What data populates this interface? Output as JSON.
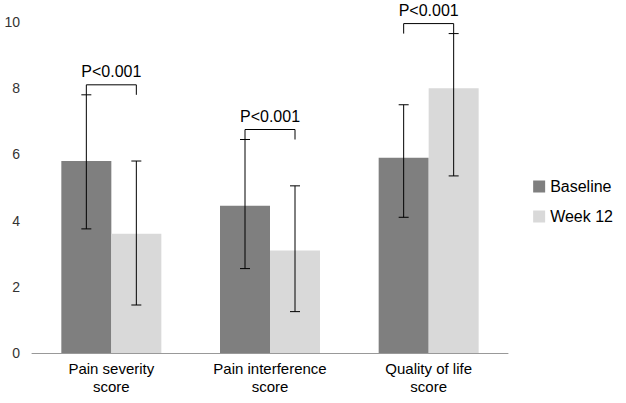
{
  "chart_data": {
    "type": "bar",
    "categories": [
      "Pain severity\nscore",
      "Pain interference\nscore",
      "Quality of life\nscore"
    ],
    "series": [
      {
        "name": "Baseline",
        "color": "#7f7f7f",
        "values": [
          5.8,
          4.45,
          5.9
        ],
        "error_minus": [
          2.05,
          1.9,
          1.8
        ],
        "error_plus": [
          2.0,
          2.0,
          1.6
        ]
      },
      {
        "name": "Week 12",
        "color": "#d9d9d9",
        "values": [
          3.6,
          3.1,
          8.0
        ],
        "error_minus": [
          2.15,
          1.85,
          2.65
        ],
        "error_plus": [
          2.2,
          1.95,
          1.65
        ]
      }
    ],
    "annotations": [
      "P<0.001",
      "P<0.001",
      "P<0.001"
    ],
    "ylim": [
      0,
      10
    ],
    "yticks": [
      0,
      2,
      4,
      6,
      8,
      10
    ],
    "grid": false,
    "legend": "right"
  }
}
